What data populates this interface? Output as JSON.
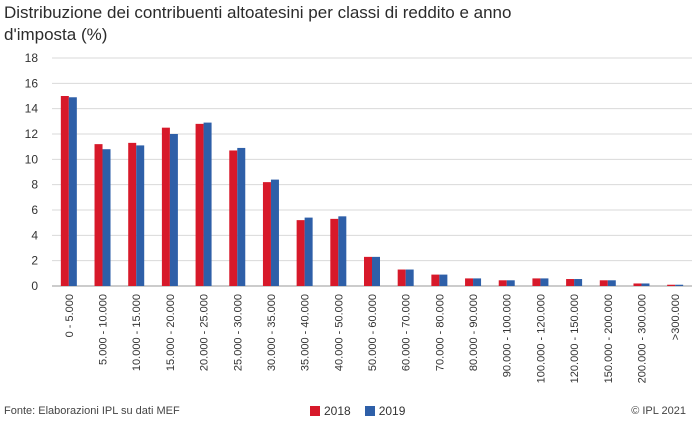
{
  "chart_data": {
    "type": "bar",
    "title": "Distribuzione dei contribuenti  altoatesini per classi di reddito e anno d'imposta (%)",
    "categories": [
      "0 - 5.000",
      "5.000 - 10.000",
      "10.000 - 15.000",
      "15.000 - 20.000",
      "20.000 - 25.000",
      "25.000 - 30.000",
      "30.000 - 35.000",
      "35.000 - 40.000",
      "40.000 - 50.000",
      "50.000 - 60.000",
      "60.000 - 70.000",
      "70.000 - 80.000",
      "80.000 - 90.000",
      "90.000 - 100.000",
      "100.000 - 120.000",
      "120.000 - 150.000",
      "150.000 - 200.000",
      "200.000 - 300.000",
      ">300.000"
    ],
    "series": [
      {
        "name": "2018",
        "color": "#d7192a",
        "values": [
          15.0,
          11.2,
          11.3,
          12.5,
          12.8,
          10.7,
          8.2,
          5.2,
          5.3,
          2.3,
          1.3,
          0.9,
          0.6,
          0.45,
          0.6,
          0.55,
          0.45,
          0.2,
          0.1
        ]
      },
      {
        "name": "2019",
        "color": "#2e5fa8",
        "values": [
          14.9,
          10.8,
          11.1,
          12.0,
          12.9,
          10.9,
          8.4,
          5.4,
          5.5,
          2.3,
          1.3,
          0.9,
          0.6,
          0.45,
          0.6,
          0.55,
          0.45,
          0.2,
          0.1
        ]
      }
    ],
    "ylim": [
      0,
      18
    ],
    "yticks": [
      0,
      2,
      4,
      6,
      8,
      10,
      12,
      14,
      16,
      18
    ],
    "grid": true,
    "legend": "bottom-center"
  },
  "footer": {
    "source": "Fonte: Elaborazioni IPL su dati MEF",
    "copyright": "© IPL 2021"
  }
}
